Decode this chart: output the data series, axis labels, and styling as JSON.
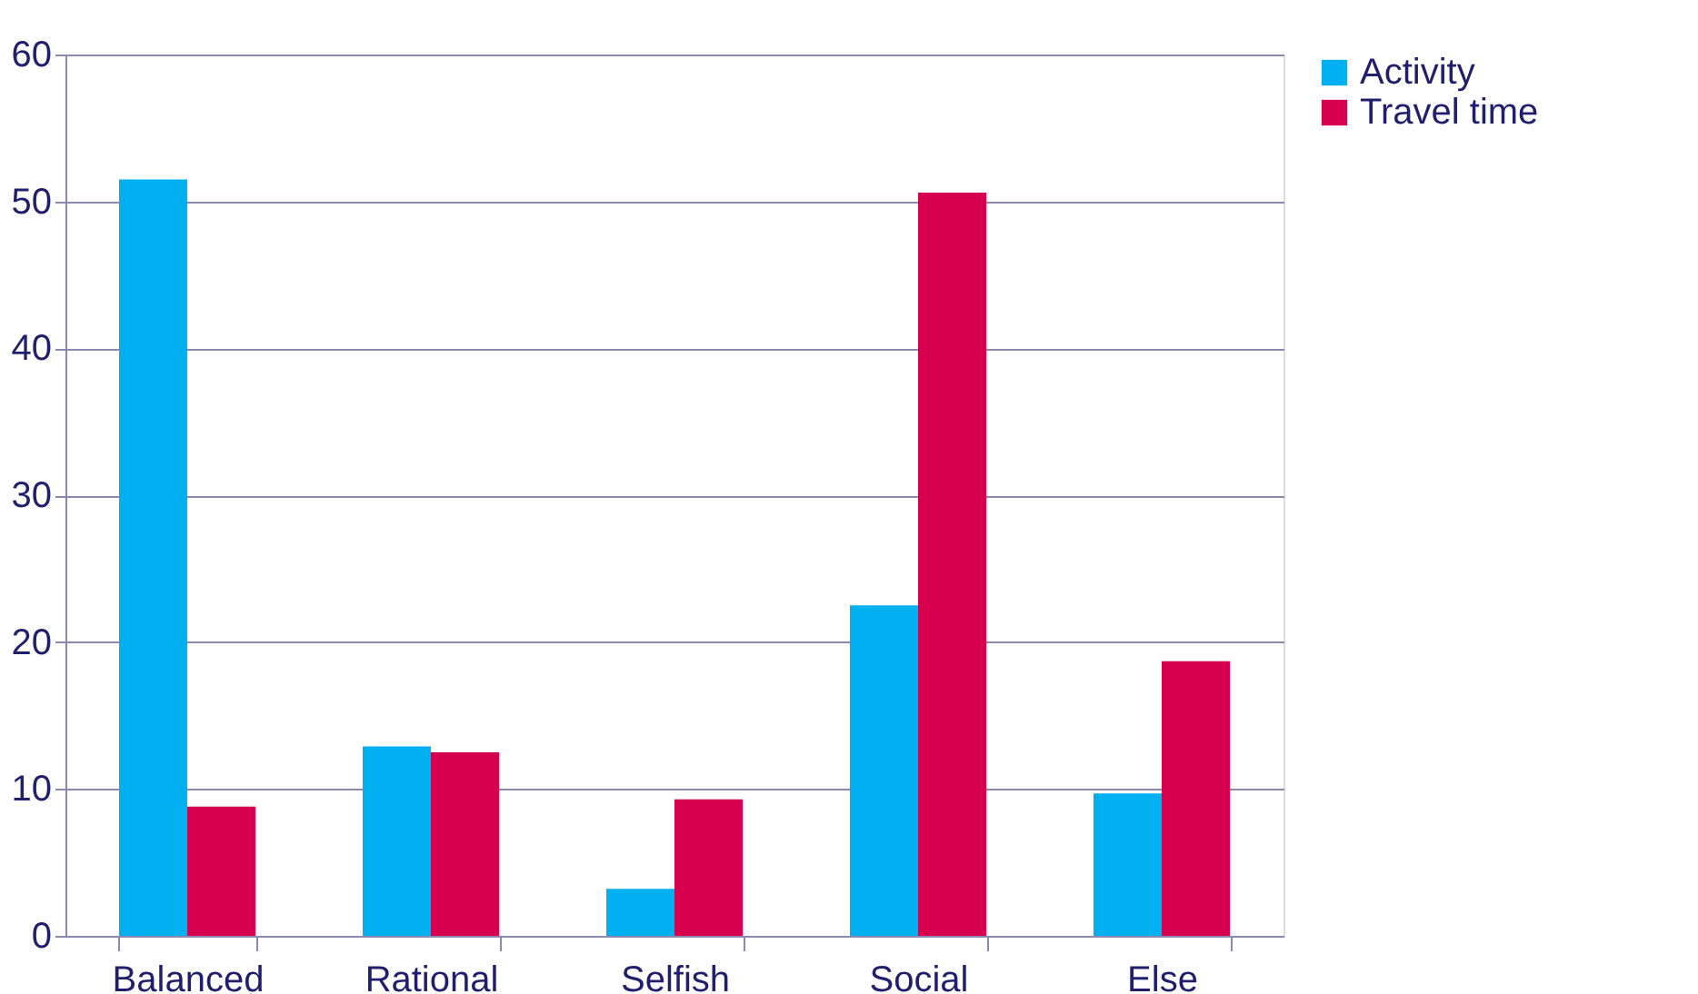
{
  "chart_data": {
    "type": "bar",
    "categories": [
      "Balanced",
      "Rational",
      "Selfish",
      "Social",
      "Else"
    ],
    "series": [
      {
        "name": "Activity",
        "color": "#00b0f0",
        "values": [
          51.5,
          12.9,
          3.2,
          22.5,
          9.7
        ]
      },
      {
        "name": "Travel time",
        "color": "#d6004f",
        "values": [
          8.8,
          12.5,
          9.3,
          50.6,
          18.7
        ]
      }
    ],
    "ylim": [
      0,
      60
    ],
    "yticks": [
      0,
      10,
      20,
      30,
      40,
      50,
      60
    ],
    "grid": "y",
    "legend": "right"
  }
}
